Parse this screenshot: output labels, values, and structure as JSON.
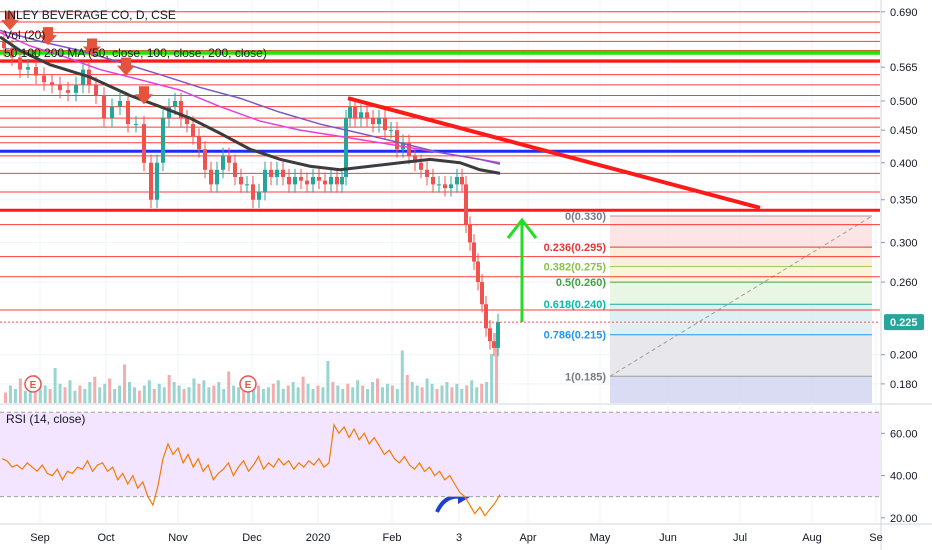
{
  "chart_header": {
    "title": "INLEY BEVERAGE CO, D, CSE",
    "vol_legend": "Vol (20)",
    "ma_legend": "50 100 200 MA (50, close, 100, close, 200, close)"
  },
  "rsi_panel": {
    "label": "RSI (14, close)"
  },
  "colors": {
    "resistance": "#ff1a1a",
    "support_green": "#1ee600",
    "blue_line": "#1c2dff",
    "ma_dark": "#3c3c3c",
    "ma_pink": "#e040e0",
    "ma_purple": "#7e57c2",
    "candle_up": "#26a69a",
    "candle_down": "#ef5350",
    "rsi_line": "#f57c00",
    "rsi_band": "#f3e5ff",
    "arrow_green": "#22dd22",
    "arrow_blue": "#1c3fd0",
    "last_price_badge": "#26a69a"
  },
  "chart_data": {
    "type": "candlestick",
    "title": "INLEY BEVERAGE CO, D, CSE",
    "x_axis": {
      "ticks": [
        "Sep",
        "Oct",
        "Nov",
        "Dec",
        "2020",
        "Feb",
        "3",
        "Apr",
        "May",
        "Jun",
        "Jul",
        "Aug",
        "Se"
      ]
    },
    "y_axis": {
      "scale": "log",
      "range": [
        0.168,
        0.72
      ],
      "ticks": [
        "0.690",
        "0.565",
        "0.500",
        "0.450",
        "0.400",
        "0.350",
        "0.300",
        "0.260",
        "0.200",
        "0.180"
      ]
    },
    "last_price": "0.225",
    "price_path": [
      [
        0,
        0.62
      ],
      [
        8,
        0.605
      ],
      [
        16,
        0.585
      ],
      [
        24,
        0.56
      ],
      [
        32,
        0.565
      ],
      [
        40,
        0.548
      ],
      [
        48,
        0.535
      ],
      [
        56,
        0.53
      ],
      [
        64,
        0.52
      ],
      [
        72,
        0.515
      ],
      [
        80,
        0.53
      ],
      [
        86,
        0.56
      ],
      [
        92,
        0.53
      ],
      [
        100,
        0.51
      ],
      [
        108,
        0.47
      ],
      [
        116,
        0.49
      ],
      [
        124,
        0.5
      ],
      [
        132,
        0.46
      ],
      [
        140,
        0.46
      ],
      [
        148,
        0.4
      ],
      [
        154,
        0.35
      ],
      [
        160,
        0.4
      ],
      [
        166,
        0.47
      ],
      [
        172,
        0.49
      ],
      [
        178,
        0.5
      ],
      [
        184,
        0.47
      ],
      [
        190,
        0.46
      ],
      [
        196,
        0.44
      ],
      [
        202,
        0.42
      ],
      [
        208,
        0.39
      ],
      [
        214,
        0.37
      ],
      [
        220,
        0.39
      ],
      [
        226,
        0.41
      ],
      [
        232,
        0.4
      ],
      [
        238,
        0.38
      ],
      [
        244,
        0.37
      ],
      [
        250,
        0.37
      ],
      [
        256,
        0.35
      ],
      [
        262,
        0.36
      ],
      [
        268,
        0.39
      ],
      [
        274,
        0.38
      ],
      [
        280,
        0.39
      ],
      [
        286,
        0.38
      ],
      [
        292,
        0.37
      ],
      [
        298,
        0.38
      ],
      [
        304,
        0.375
      ],
      [
        310,
        0.37
      ],
      [
        316,
        0.38
      ],
      [
        322,
        0.375
      ],
      [
        328,
        0.37
      ],
      [
        334,
        0.38
      ],
      [
        340,
        0.37
      ],
      [
        344,
        0.38
      ],
      [
        348,
        0.47
      ],
      [
        352,
        0.49
      ],
      [
        358,
        0.47
      ],
      [
        364,
        0.48
      ],
      [
        370,
        0.47
      ],
      [
        376,
        0.46
      ],
      [
        382,
        0.47
      ],
      [
        388,
        0.45
      ],
      [
        394,
        0.45
      ],
      [
        400,
        0.42
      ],
      [
        406,
        0.43
      ],
      [
        412,
        0.41
      ],
      [
        418,
        0.4
      ],
      [
        424,
        0.39
      ],
      [
        430,
        0.38
      ],
      [
        436,
        0.37
      ],
      [
        442,
        0.37
      ],
      [
        448,
        0.365
      ],
      [
        454,
        0.37
      ],
      [
        460,
        0.38
      ],
      [
        464,
        0.37
      ],
      [
        468,
        0.32
      ],
      [
        472,
        0.3
      ],
      [
        476,
        0.28
      ],
      [
        480,
        0.26
      ],
      [
        484,
        0.24
      ],
      [
        488,
        0.22
      ],
      [
        492,
        0.21
      ],
      [
        496,
        0.205
      ],
      [
        500,
        0.225
      ]
    ],
    "volume": [
      6,
      10,
      8,
      14,
      7,
      9,
      16,
      12,
      10,
      8,
      20,
      11,
      9,
      13,
      7,
      10,
      8,
      12,
      15,
      9,
      11,
      14,
      8,
      10,
      22,
      12,
      9,
      7,
      10,
      13,
      8,
      11,
      9,
      16,
      12,
      10,
      8,
      9,
      14,
      11,
      13,
      9,
      10,
      12,
      8,
      18,
      10,
      9,
      7,
      12,
      14,
      10,
      8,
      9,
      11,
      13,
      8,
      10,
      12,
      9,
      15,
      11,
      8,
      10,
      9,
      24,
      12,
      10,
      8,
      11,
      9,
      13,
      10,
      8,
      12,
      14,
      9,
      11,
      10,
      8,
      30,
      16,
      12,
      10,
      9,
      14,
      11,
      8,
      10,
      12,
      9,
      11,
      8,
      10,
      13,
      9,
      11,
      12,
      28,
      40
    ],
    "ma_series": [
      {
        "points": [
          [
            0,
            0.63
          ],
          [
            20,
            0.6
          ],
          [
            50,
            0.57
          ],
          [
            90,
            0.545
          ],
          [
            130,
            0.51
          ],
          [
            160,
            0.49
          ],
          [
            190,
            0.47
          ],
          [
            220,
            0.445
          ],
          [
            250,
            0.42
          ],
          [
            280,
            0.405
          ],
          [
            310,
            0.395
          ],
          [
            340,
            0.39
          ],
          [
            370,
            0.395
          ],
          [
            400,
            0.4
          ],
          [
            430,
            0.405
          ],
          [
            460,
            0.4
          ],
          [
            480,
            0.39
          ],
          [
            500,
            0.385
          ]
        ]
      },
      {
        "points": [
          [
            0,
            0.64
          ],
          [
            30,
            0.61
          ],
          [
            60,
            0.59
          ],
          [
            100,
            0.56
          ],
          [
            140,
            0.54
          ],
          [
            180,
            0.52
          ],
          [
            220,
            0.49
          ],
          [
            260,
            0.465
          ],
          [
            300,
            0.45
          ],
          [
            340,
            0.44
          ],
          [
            380,
            0.43
          ],
          [
            420,
            0.42
          ],
          [
            460,
            0.41
          ],
          [
            500,
            0.4
          ]
        ]
      },
      {
        "points": [
          [
            0,
            0.645
          ],
          [
            40,
            0.62
          ],
          [
            80,
            0.6
          ],
          [
            120,
            0.575
          ],
          [
            160,
            0.55
          ],
          [
            200,
            0.525
          ],
          [
            240,
            0.505
          ],
          [
            280,
            0.48
          ],
          [
            320,
            0.46
          ],
          [
            360,
            0.445
          ],
          [
            400,
            0.43
          ],
          [
            440,
            0.415
          ],
          [
            480,
            0.405
          ],
          [
            500,
            0.398
          ]
        ]
      }
    ],
    "horizontal_levels": [
      0.69,
      0.665,
      0.64,
      0.62,
      0.6,
      0.575,
      0.55,
      0.53,
      0.51,
      0.49,
      0.47,
      0.455,
      0.44,
      0.43,
      0.41,
      0.385,
      0.36,
      0.32,
      0.285,
      0.265,
      0.235
    ],
    "thick_levels": {
      "green": 0.595,
      "red_top": 0.578,
      "blue": 0.417,
      "red_bottom": 0.337
    },
    "trendline": {
      "from": [
        348,
        0.505
      ],
      "to": [
        760,
        0.34
      ]
    },
    "fibonacci": {
      "labels": [
        "0(0.330)",
        "0.236(0.295)",
        "0.382(0.275)",
        "0.5(0.260)",
        "0.618(0.240)",
        "0.786(0.215)",
        "1(0.185)"
      ],
      "levels": [
        0.33,
        0.295,
        0.275,
        0.26,
        0.24,
        0.215,
        0.185
      ]
    },
    "rsi": {
      "y_range": [
        18,
        72
      ],
      "ticks": [
        "60.00",
        "40.00",
        "20.00"
      ],
      "band": [
        30,
        70
      ],
      "values": [
        48,
        47,
        44,
        45,
        43,
        46,
        44,
        42,
        45,
        41,
        40,
        43,
        38,
        42,
        41,
        44,
        43,
        47,
        42,
        45,
        46,
        42,
        44,
        38,
        41,
        36,
        40,
        34,
        37,
        30,
        26,
        35,
        48,
        55,
        50,
        53,
        46,
        50,
        44,
        48,
        42,
        45,
        38,
        41,
        43,
        46,
        40,
        44,
        47,
        42,
        45,
        49,
        43,
        46,
        44,
        48,
        45,
        47,
        43,
        46,
        44,
        47,
        45,
        48,
        44,
        46,
        64,
        60,
        63,
        58,
        62,
        57,
        60,
        55,
        58,
        54,
        50,
        52,
        48,
        46,
        49,
        45,
        43,
        46,
        42,
        44,
        40,
        42,
        38,
        40,
        36,
        32,
        30,
        26,
        22,
        25,
        21,
        24,
        27,
        31
      ]
    }
  }
}
